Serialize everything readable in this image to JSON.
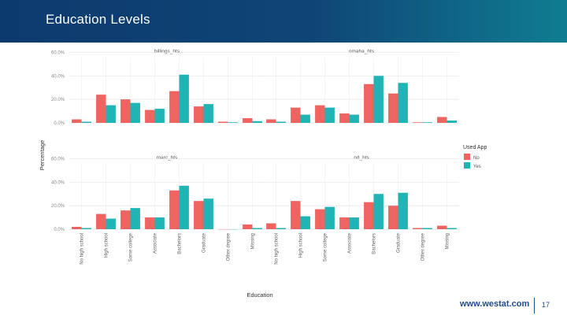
{
  "slide": {
    "title": "Education Levels",
    "footer_url": "www.westat.com",
    "page_number": "17"
  },
  "colors": {
    "no": "#ee6461",
    "yes": "#20b5b4",
    "grid": "#e6e6e6",
    "text": "#555555"
  },
  "chart_data": {
    "type": "bar",
    "layout": "facet-2x2",
    "xlabel": "Education",
    "ylabel": "Percentage",
    "yticks": [
      "60.0%",
      "40.0%",
      "20.0%",
      "0.0%"
    ],
    "ylim": [
      0,
      65
    ],
    "categories": [
      "No high school",
      "High school",
      "Some college",
      "Associate",
      "Bachelors",
      "Graduate",
      "Other degree",
      "Missing"
    ],
    "legend": {
      "title": "Used App",
      "entries": [
        "No",
        "Yes"
      ],
      "position": "right"
    },
    "panels": [
      {
        "title": "billings_hts",
        "series": [
          {
            "name": "No",
            "values": [
              3,
              24,
              20,
              11,
              27,
              14,
              1,
              4
            ]
          },
          {
            "name": "Yes",
            "values": [
              1,
              15,
              17,
              12,
              41,
              16,
              0.5,
              1.5
            ]
          }
        ]
      },
      {
        "title": "omaha_hts",
        "series": [
          {
            "name": "No",
            "values": [
              3,
              13,
              15,
              8,
              33,
              25,
              0.5,
              5
            ]
          },
          {
            "name": "Yes",
            "values": [
              1,
              7,
              13,
              7,
              40,
              34,
              0.5,
              2
            ]
          }
        ]
      },
      {
        "title": "marc_hts",
        "series": [
          {
            "name": "No",
            "values": [
              2,
              13,
              16,
              10,
              33,
              24,
              0,
              4
            ]
          },
          {
            "name": "Yes",
            "values": [
              1,
              9,
              18,
              10,
              37,
              26,
              0,
              1
            ]
          }
        ]
      },
      {
        "title": "nd_hts",
        "series": [
          {
            "name": "No",
            "values": [
              5,
              24,
              17,
              10,
              23,
              20,
              1,
              3
            ]
          },
          {
            "name": "Yes",
            "values": [
              1,
              11,
              19,
              10,
              30,
              31,
              1,
              1
            ]
          }
        ]
      }
    ]
  }
}
